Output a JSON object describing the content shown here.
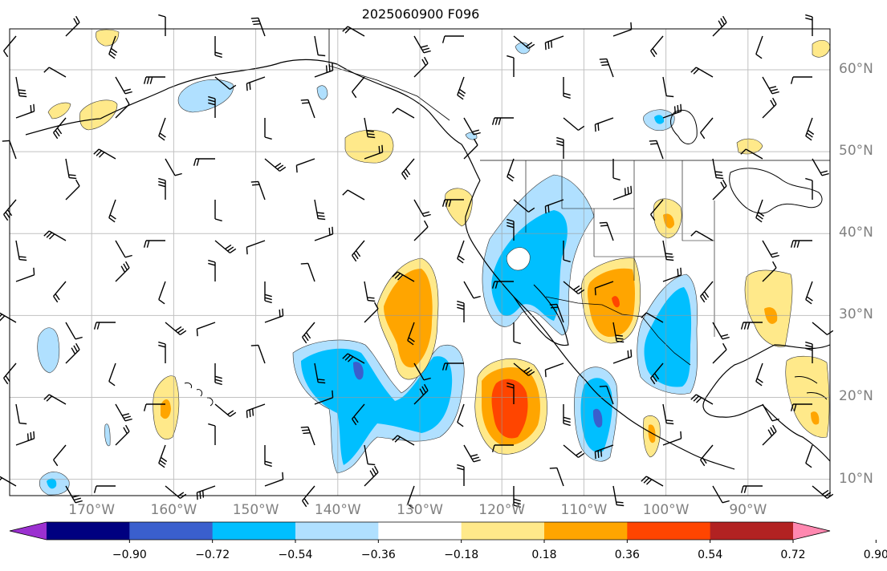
{
  "title": "2025060900 F096",
  "map": {
    "projection": "PlateCarree",
    "extent_lon": [
      -180,
      -80
    ],
    "extent_lat": [
      8,
      65
    ],
    "gridlines": true,
    "fields": [
      "filled-contour anomaly",
      "wind barbs",
      "coastlines",
      "country/state borders"
    ]
  },
  "lat_labels": [
    "60°N",
    "50°N",
    "40°N",
    "30°N",
    "20°N",
    "10°N"
  ],
  "lon_labels": [
    "170°W",
    "160°W",
    "150°W",
    "140°W",
    "130°W",
    "120°W",
    "110°W",
    "100°W",
    "90°W"
  ],
  "colorbar": {
    "tick_labels": [
      "−0.90",
      "−0.72",
      "−0.54",
      "−0.36",
      "−0.18",
      "0.18",
      "0.36",
      "0.54",
      "0.72",
      "0.90"
    ],
    "colors": [
      "#9b30d0",
      "#000080",
      "#3a5fcd",
      "#00bfff",
      "#b0e0ff",
      "#ffffff",
      "#ffe98a",
      "#ffa500",
      "#ff4500",
      "#b22222",
      "#ff88b0"
    ],
    "extend": "both"
  }
}
